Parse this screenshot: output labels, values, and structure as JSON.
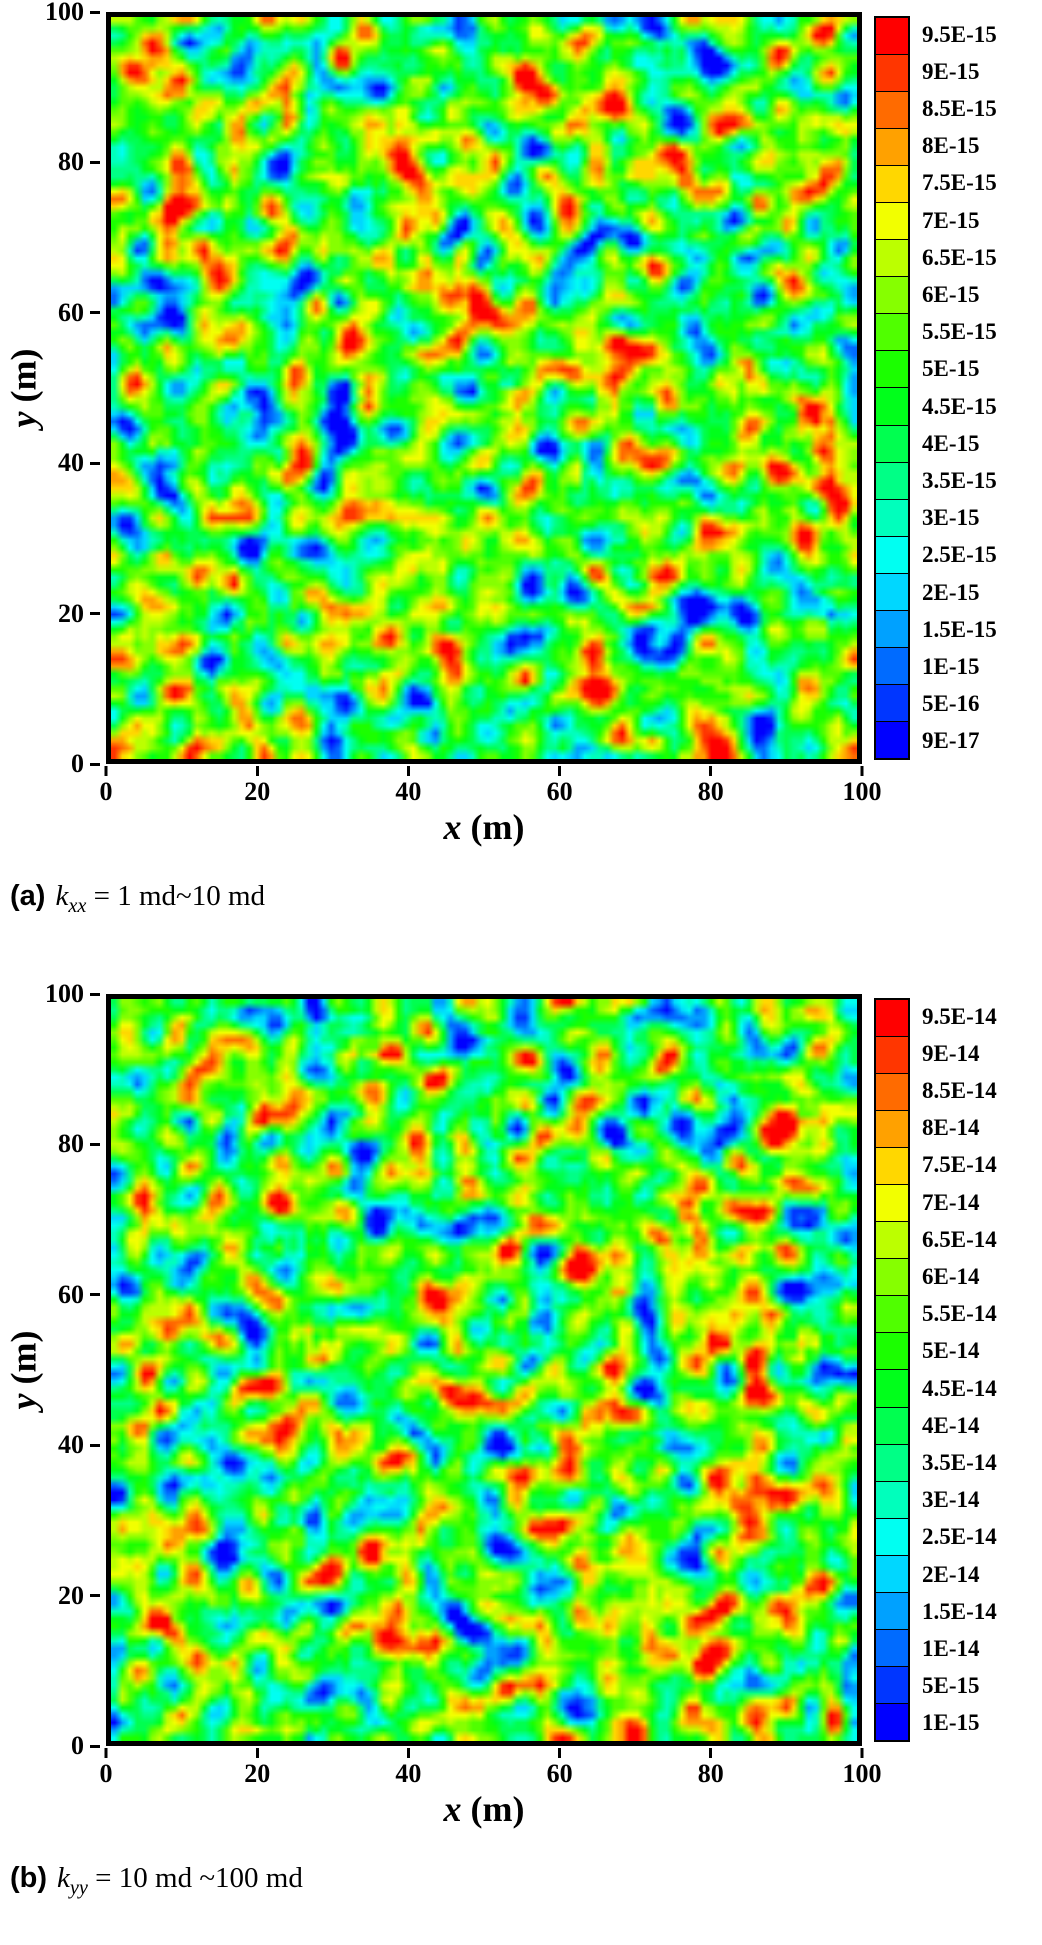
{
  "page": {
    "background": "#ffffff"
  },
  "chart_data": [
    {
      "type": "heatmap",
      "panel": "a",
      "caption": {
        "tag": "(a)",
        "var": "k",
        "sub": "xx",
        "value": " = 1 md~10 md"
      },
      "xlabel": {
        "var": "x",
        "unit": " (m)"
      },
      "ylabel": {
        "var": "y",
        "unit": " (m)"
      },
      "x_range": [
        0,
        100
      ],
      "y_range": [
        0,
        100
      ],
      "x_ticks": [
        "0",
        "20",
        "40",
        "60",
        "80",
        "100"
      ],
      "y_ticks": [
        "0",
        "20",
        "40",
        "60",
        "80",
        "100"
      ],
      "colorbar_labels_top_to_bottom": [
        "9.5E-15",
        "9E-15",
        "8.5E-15",
        "8E-15",
        "7.5E-15",
        "7E-15",
        "6.5E-15",
        "6E-15",
        "5.5E-15",
        "5E-15",
        "4.5E-15",
        "4E-15",
        "3.5E-15",
        "3E-15",
        "2.5E-15",
        "2E-15",
        "1.5E-15",
        "1E-15",
        "5E-16",
        "9E-17"
      ],
      "colorbar_colors_bottom_to_top": [
        "#0000FF",
        "#0036FF",
        "#006BFF",
        "#00A1FF",
        "#00D7FF",
        "#00FFF2",
        "#00FFBC",
        "#00FF86",
        "#00FF50",
        "#00FF1B",
        "#1BFF00",
        "#50FF00",
        "#86FF00",
        "#BCFF00",
        "#F2FF00",
        "#FFD700",
        "#FFA100",
        "#FF6B00",
        "#FF3600",
        "#FF0000"
      ],
      "field_description": "spatially correlated random permeability field k_xx over 100 m x 100 m domain, values spanning 9E-17 to 9.5E-15 (1 md~10 md), mostly mid-range (green) with scattered high (red) and low (blue) patches",
      "value_min_label": "9E-17",
      "value_max_label": "9.5E-15",
      "grid": [
        100,
        100
      ],
      "render_seed": 113
    },
    {
      "type": "heatmap",
      "panel": "b",
      "caption": {
        "tag": "(b)",
        "var": "k",
        "sub": "yy",
        "value": " = 10 md ~100 md"
      },
      "xlabel": {
        "var": "x",
        "unit": " (m)"
      },
      "ylabel": {
        "var": "y",
        "unit": " (m)"
      },
      "x_range": [
        0,
        100
      ],
      "y_range": [
        0,
        100
      ],
      "x_ticks": [
        "0",
        "20",
        "40",
        "60",
        "80",
        "100"
      ],
      "y_ticks": [
        "0",
        "20",
        "40",
        "60",
        "80",
        "100"
      ],
      "colorbar_labels_top_to_bottom": [
        "9.5E-14",
        "9E-14",
        "8.5E-14",
        "8E-14",
        "7.5E-14",
        "7E-14",
        "6.5E-14",
        "6E-14",
        "5.5E-14",
        "5E-14",
        "4.5E-14",
        "4E-14",
        "3.5E-14",
        "3E-14",
        "2.5E-14",
        "2E-14",
        "1.5E-14",
        "1E-14",
        "5E-15",
        "1E-15"
      ],
      "colorbar_colors_bottom_to_top": [
        "#0000FF",
        "#0036FF",
        "#006BFF",
        "#00A1FF",
        "#00D7FF",
        "#00FFF2",
        "#00FFBC",
        "#00FF86",
        "#00FF50",
        "#00FF1B",
        "#1BFF00",
        "#50FF00",
        "#86FF00",
        "#BCFF00",
        "#F2FF00",
        "#FFD700",
        "#FFA100",
        "#FF6B00",
        "#FF3600",
        "#FF0000"
      ],
      "field_description": "spatially correlated random permeability field k_yy over 100 m x 100 m domain, values spanning 1E-15 to 9.5E-14 (10 md ~100 md), mostly mid-range (green) with scattered high (red) and low (blue) patches",
      "value_min_label": "1E-15",
      "value_max_label": "9.5E-14",
      "grid": [
        100,
        100
      ],
      "render_seed": 787
    }
  ]
}
